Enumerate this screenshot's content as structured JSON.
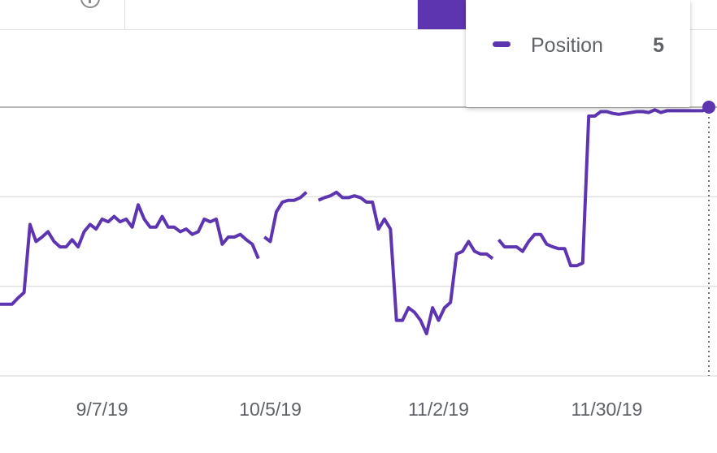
{
  "tooltip": {
    "series_label": "Position",
    "value": "5"
  },
  "colors": {
    "series": "#5e35b1",
    "grid": "#e0e0e0",
    "axis_line": "#9e9e9e",
    "text": "#5f6368"
  },
  "chart_data": {
    "type": "line",
    "title": "",
    "xlabel": "",
    "ylabel": "",
    "x_tick_labels": [
      "9/7/19",
      "10/5/19",
      "11/2/19",
      "11/30/19"
    ],
    "x_ticks": [
      17,
      45,
      73,
      101
    ],
    "xlim": [
      0,
      118
    ],
    "ylim": [
      5,
      2
    ],
    "y_scale": "inverted",
    "grid": true,
    "series": [
      {
        "name": "Position",
        "segments": [
          [
            [
              0,
              4.2
            ],
            [
              1,
              4.2
            ],
            [
              2,
              4.2
            ],
            [
              3,
              4.13
            ],
            [
              4,
              4.07
            ],
            [
              5,
              3.31
            ],
            [
              6,
              3.5
            ],
            [
              7,
              3.45
            ],
            [
              8,
              3.39
            ],
            [
              9,
              3.5
            ],
            [
              10,
              3.56
            ],
            [
              11,
              3.56
            ],
            [
              12,
              3.48
            ],
            [
              13,
              3.56
            ],
            [
              14,
              3.39
            ],
            [
              15,
              3.31
            ],
            [
              16,
              3.36
            ],
            [
              17,
              3.25
            ],
            [
              18,
              3.28
            ],
            [
              19,
              3.22
            ],
            [
              20,
              3.28
            ],
            [
              21,
              3.25
            ],
            [
              22,
              3.34
            ],
            [
              23,
              3.09
            ],
            [
              24,
              3.25
            ],
            [
              25,
              3.34
            ],
            [
              26,
              3.34
            ],
            [
              27,
              3.22
            ],
            [
              28,
              3.34
            ],
            [
              29,
              3.34
            ],
            [
              30,
              3.39
            ],
            [
              31,
              3.36
            ],
            [
              32,
              3.42
            ],
            [
              33,
              3.39
            ],
            [
              34,
              3.25
            ],
            [
              35,
              3.28
            ],
            [
              36,
              3.25
            ],
            [
              37,
              3.53
            ],
            [
              38,
              3.45
            ],
            [
              39,
              3.45
            ],
            [
              40,
              3.42
            ],
            [
              41,
              3.48
            ],
            [
              42,
              3.53
            ],
            [
              43,
              3.69
            ]
          ],
          [
            [
              44,
              3.45
            ],
            [
              45,
              3.5
            ],
            [
              46,
              3.17
            ],
            [
              47,
              3.06
            ],
            [
              48,
              3.04
            ],
            [
              49,
              3.04
            ],
            [
              50,
              3.01
            ],
            [
              51,
              2.95
            ]
          ],
          [
            [
              53,
              3.04
            ],
            [
              54,
              3.01
            ],
            [
              55,
              2.99
            ],
            [
              56,
              2.95
            ],
            [
              57,
              3.01
            ],
            [
              58,
              3.01
            ],
            [
              59,
              2.99
            ],
            [
              60,
              3.01
            ],
            [
              61,
              3.06
            ],
            [
              62,
              3.06
            ],
            [
              63,
              3.36
            ],
            [
              64,
              3.25
            ],
            [
              65,
              3.36
            ],
            [
              66,
              4.38
            ],
            [
              67,
              4.38
            ],
            [
              68,
              4.24
            ],
            [
              69,
              4.29
            ],
            [
              70,
              4.38
            ],
            [
              71,
              4.53
            ],
            [
              72,
              4.24
            ],
            [
              73,
              4.38
            ],
            [
              74,
              4.24
            ],
            [
              75,
              4.18
            ],
            [
              76,
              3.64
            ],
            [
              77,
              3.61
            ],
            [
              78,
              3.5
            ],
            [
              79,
              3.61
            ],
            [
              80,
              3.64
            ],
            [
              81,
              3.64
            ],
            [
              82,
              3.69
            ]
          ],
          [
            [
              83,
              3.48
            ],
            [
              84,
              3.56
            ],
            [
              85,
              3.56
            ],
            [
              86,
              3.56
            ],
            [
              87,
              3.61
            ],
            [
              88,
              3.5
            ],
            [
              89,
              3.42
            ],
            [
              90,
              3.42
            ],
            [
              91,
              3.53
            ],
            [
              92,
              3.56
            ],
            [
              93,
              3.58
            ],
            [
              94,
              3.58
            ],
            [
              95,
              3.77
            ],
            [
              96,
              3.77
            ],
            [
              97,
              3.74
            ],
            [
              98,
              2.1
            ],
            [
              99,
              2.1
            ],
            [
              100,
              2.05
            ],
            [
              101,
              2.05
            ],
            [
              102,
              2.07
            ],
            [
              103,
              2.08
            ],
            [
              104,
              2.07
            ],
            [
              105,
              2.06
            ],
            [
              106,
              2.05
            ],
            [
              107,
              2.05
            ],
            [
              108,
              2.06
            ],
            [
              109,
              2.03
            ],
            [
              110,
              2.06
            ],
            [
              111,
              2.04
            ],
            [
              112,
              2.04
            ],
            [
              113,
              2.04
            ],
            [
              114,
              2.04
            ],
            [
              115,
              2.04
            ],
            [
              116,
              2.04
            ],
            [
              117,
              2.04
            ],
            [
              118,
              2.0
            ]
          ]
        ]
      }
    ]
  }
}
